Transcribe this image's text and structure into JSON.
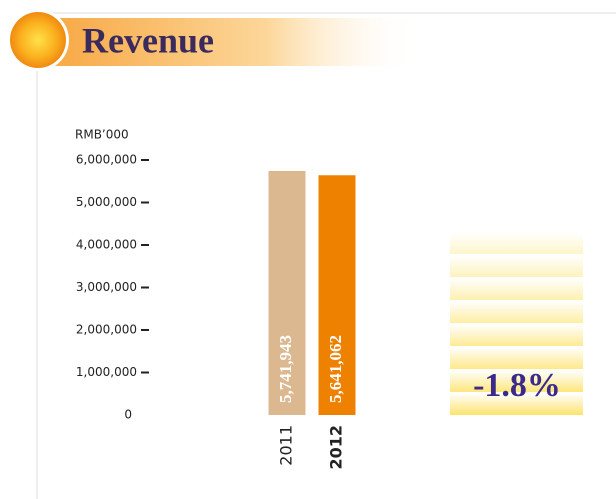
{
  "chart_data": {
    "type": "bar",
    "title": "Revenue",
    "y_axis_label": "RMB’000",
    "categories": [
      "2011",
      "2012"
    ],
    "values": [
      5741943,
      5641062
    ],
    "value_labels": [
      "5,741,943",
      "5,641,062"
    ],
    "colors": [
      "#dcb890",
      "#ee8100"
    ],
    "ylim": [
      0,
      6000000
    ],
    "yticks": [
      0,
      {
        "value": 1000000,
        "label": "1,000,000"
      },
      {
        "value": 2000000,
        "label": "2,000,000"
      },
      {
        "value": 3000000,
        "label": "3,000,000"
      },
      {
        "value": 4000000,
        "label": "4,000,000"
      },
      {
        "value": 5000000,
        "label": "5,000,000"
      },
      {
        "value": 6000000,
        "label": "6,000,000"
      }
    ],
    "annotation": "-1.8%"
  }
}
